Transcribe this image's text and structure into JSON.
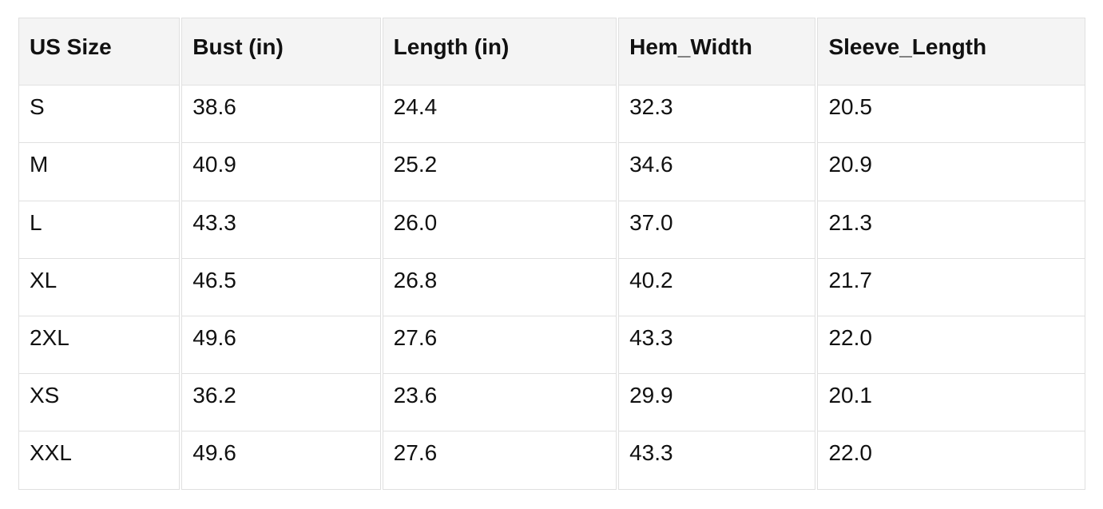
{
  "colors": {
    "header-bg": "#f4f4f4",
    "border-color": "#e0e0e0",
    "text-color": "#111111",
    "page-bg": "#ffffff"
  },
  "table": {
    "columns": [
      "US Size",
      "Bust (in)",
      "Length (in)",
      "Hem_Width",
      "Sleeve_Length"
    ],
    "rows": [
      [
        "S",
        "38.6",
        "24.4",
        "32.3",
        "20.5"
      ],
      [
        "M",
        "40.9",
        "25.2",
        "34.6",
        "20.9"
      ],
      [
        "L",
        "43.3",
        "26.0",
        "37.0",
        "21.3"
      ],
      [
        "XL",
        "46.5",
        "26.8",
        "40.2",
        "21.7"
      ],
      [
        "2XL",
        "49.6",
        "27.6",
        "43.3",
        "22.0"
      ],
      [
        "XS",
        "36.2",
        "23.6",
        "29.9",
        "20.1"
      ],
      [
        "XXL",
        "49.6",
        "27.6",
        "43.3",
        "22.0"
      ]
    ]
  }
}
